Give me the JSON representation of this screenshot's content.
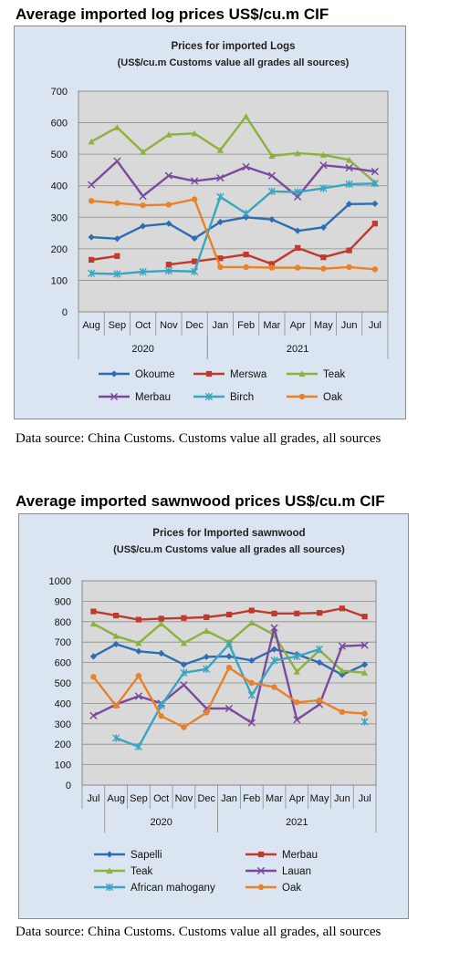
{
  "charts": [
    {
      "heading": "Average imported log prices US$/cu.m CIF",
      "source": "Data source: China Customs. Customs value all grades, all sources"
    },
    {
      "heading": "Average imported sawnwood prices US$/cu.m CIF",
      "source": "Data source: China Customs. Customs value all grades, all sources"
    }
  ],
  "chart_data": [
    {
      "type": "line",
      "title": "Prices for imported Logs",
      "subtitle": "(US$/cu.m Customs value all grades all sources)",
      "categories": [
        "Aug",
        "Sep",
        "Oct",
        "Nov",
        "Dec",
        "Jan",
        "Feb",
        "Mar",
        "Apr",
        "May",
        "Jun",
        "Jul"
      ],
      "year_groups": [
        {
          "label": "2020",
          "span": [
            0,
            4
          ]
        },
        {
          "label": "2021",
          "span": [
            5,
            11
          ]
        }
      ],
      "ylim": [
        0,
        700
      ],
      "yticks": [
        0,
        100,
        200,
        300,
        400,
        500,
        600,
        700
      ],
      "grid": true,
      "legend_position": "bottom",
      "series": [
        {
          "name": "Okoume",
          "color": "#2e6db4",
          "marker": "diamond",
          "values": [
            237,
            232,
            272,
            280,
            233,
            285,
            300,
            293,
            257,
            268,
            342,
            343
          ]
        },
        {
          "name": "Merswa",
          "color": "#c0392b",
          "marker": "square",
          "values": [
            165,
            177,
            null,
            150,
            160,
            170,
            182,
            152,
            203,
            173,
            195,
            280
          ]
        },
        {
          "name": "Teak",
          "color": "#8cb13e",
          "marker": "triangle",
          "values": [
            540,
            585,
            507,
            562,
            566,
            513,
            620,
            495,
            503,
            498,
            482,
            410
          ]
        },
        {
          "name": "Merbau",
          "color": "#7b4a9e",
          "marker": "x",
          "values": [
            403,
            478,
            367,
            432,
            415,
            425,
            460,
            432,
            365,
            465,
            457,
            445
          ]
        },
        {
          "name": "Birch",
          "color": "#3aa5c0",
          "marker": "asterisk",
          "values": [
            122,
            120,
            127,
            130,
            128,
            365,
            312,
            382,
            380,
            392,
            405,
            407
          ]
        },
        {
          "name": "Oak",
          "color": "#e8822a",
          "marker": "circle",
          "values": [
            352,
            345,
            338,
            340,
            357,
            142,
            142,
            140,
            140,
            137,
            142,
            135
          ]
        }
      ]
    },
    {
      "type": "line",
      "title": "Prices for Imported sawnwood",
      "subtitle": "(US$/cu.m Customs value all grades all sources)",
      "categories": [
        "Jul",
        "Aug",
        "Sep",
        "Oct",
        "Nov",
        "Dec",
        "Jan",
        "Feb",
        "Mar",
        "Apr",
        "May",
        "Jun",
        "Jul"
      ],
      "year_groups": [
        {
          "label": "2020",
          "span": [
            1,
            5
          ]
        },
        {
          "label": "2021",
          "span": [
            6,
            12
          ]
        }
      ],
      "ylim": [
        0,
        1000
      ],
      "yticks": [
        0,
        100,
        200,
        300,
        400,
        500,
        600,
        700,
        800,
        900,
        1000
      ],
      "grid": true,
      "legend_position": "bottom",
      "series": [
        {
          "name": "Sapelli",
          "color": "#2e6db4",
          "marker": "diamond",
          "values": [
            630,
            690,
            655,
            645,
            590,
            628,
            630,
            610,
            665,
            640,
            600,
            540,
            590
          ]
        },
        {
          "name": "Merbau",
          "color": "#c0392b",
          "marker": "square",
          "values": [
            850,
            830,
            810,
            815,
            818,
            822,
            835,
            855,
            840,
            840,
            843,
            865,
            825
          ]
        },
        {
          "name": "Teak",
          "color": "#8cb13e",
          "marker": "triangle",
          "values": [
            790,
            730,
            695,
            790,
            695,
            755,
            700,
            795,
            735,
            555,
            660,
            560,
            550
          ]
        },
        {
          "name": "Lauan",
          "color": "#7b4a9e",
          "marker": "x",
          "values": [
            340,
            395,
            435,
            400,
            490,
            375,
            375,
            305,
            770,
            320,
            395,
            680,
            685
          ]
        },
        {
          "name": "African mahogany",
          "color": "#3aa5c0",
          "marker": "asterisk",
          "values": [
            null,
            230,
            188,
            390,
            550,
            568,
            690,
            440,
            610,
            630,
            665,
            null,
            310
          ]
        },
        {
          "name": "Oak",
          "color": "#e8822a",
          "marker": "circle",
          "values": [
            530,
            388,
            535,
            338,
            283,
            355,
            575,
            500,
            480,
            405,
            415,
            358,
            350
          ]
        }
      ]
    }
  ]
}
